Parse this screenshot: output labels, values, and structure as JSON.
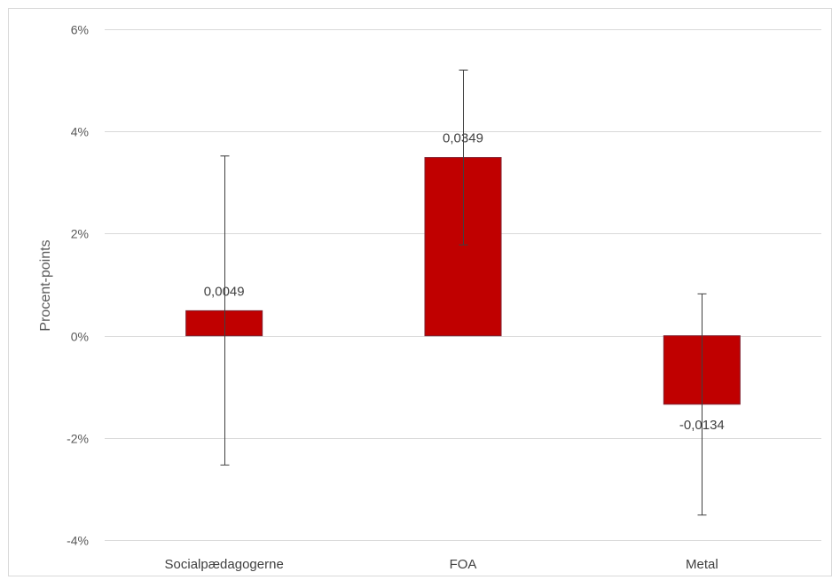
{
  "chart_data": {
    "type": "bar",
    "title": "",
    "xlabel": "",
    "ylabel": "Procent-points",
    "categories": [
      "Socialpædagogerne",
      "FOA",
      "Metal"
    ],
    "values": [
      0.0049,
      0.0349,
      -0.0134
    ],
    "value_labels": [
      "0,0049",
      "0,0349",
      "-0,0134"
    ],
    "error_bars": [
      {
        "low": -0.0253,
        "high": 0.0352
      },
      {
        "low": 0.0178,
        "high": 0.052
      },
      {
        "low": -0.0351,
        "high": 0.0082
      }
    ],
    "ylim": [
      -0.04,
      0.06
    ],
    "yticks": [
      -0.04,
      -0.02,
      0,
      0.02,
      0.04,
      0.06
    ],
    "ytick_labels": [
      "-4%",
      "-2%",
      "0%",
      "2%",
      "4%",
      "6%"
    ],
    "grid": true,
    "legend": "none",
    "colors": {
      "bar_fill": "#C00000",
      "bar_stroke": "#7F1F2E",
      "error_bar": "#404040",
      "grid": "#D9D9D9",
      "frame": "#D9D9D9"
    }
  }
}
